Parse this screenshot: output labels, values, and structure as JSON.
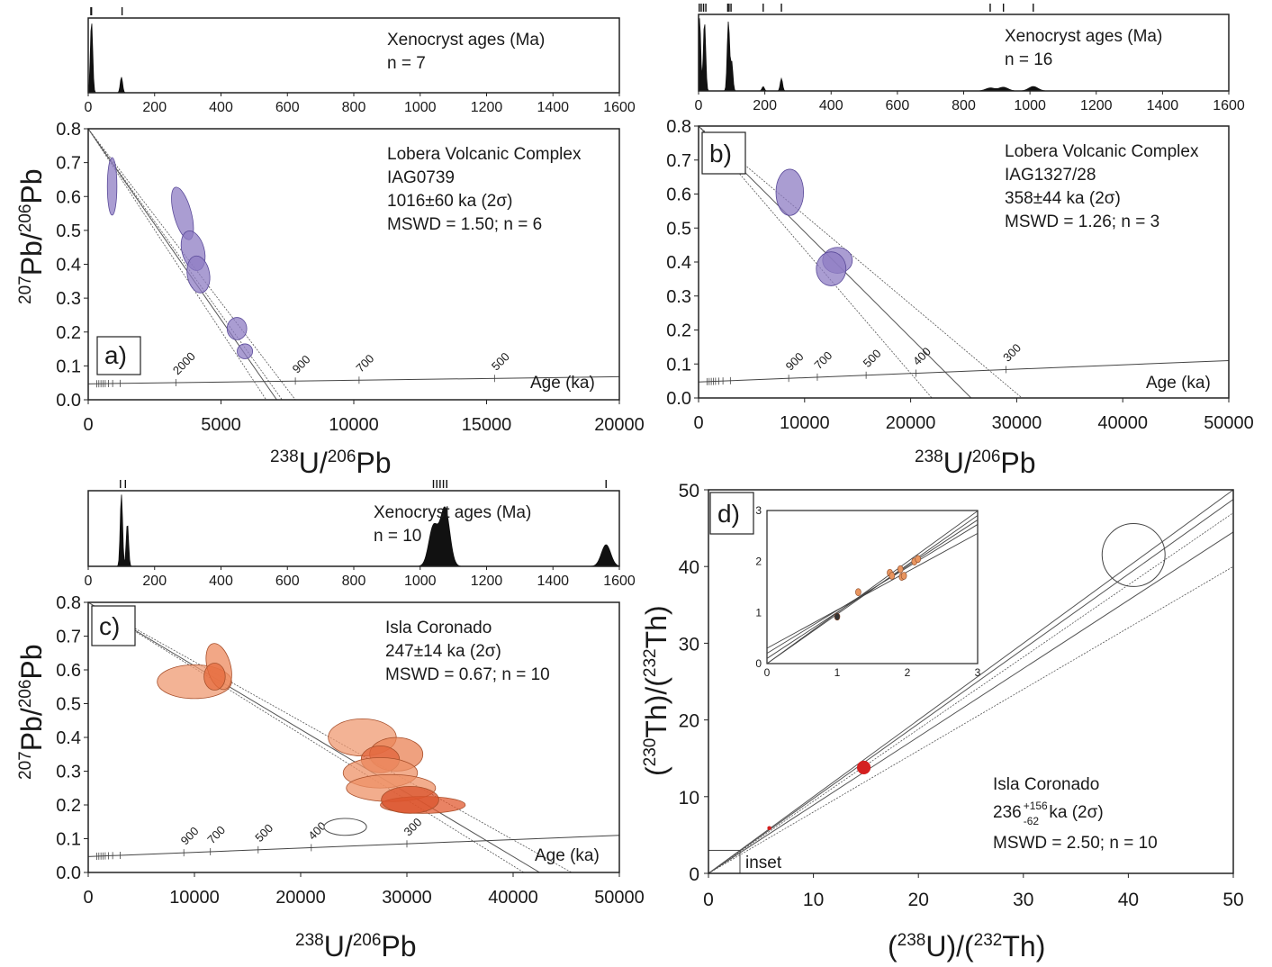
{
  "chart_data": [
    {
      "panel": "a",
      "type": "scatter",
      "label": "a)",
      "hist": {
        "title": "Xenocryst ages (Ma)",
        "n": "n = 7",
        "ticks": [
          "0",
          "200",
          "400",
          "600",
          "800",
          "1000",
          "1200",
          "1400",
          "1600"
        ],
        "xlim": [
          0,
          1600
        ],
        "peaks": [
          {
            "age": 10,
            "h": 1.0
          },
          {
            "age": 100,
            "h": 0.22
          }
        ],
        "rug": [
          8,
          10,
          102
        ]
      },
      "lines": [
        "Lobera Volcanic Complex",
        "IAG0739",
        "1016±60 ka (2σ)",
        "MSWD = 1.50; n = 6"
      ],
      "xlabel": {
        "pre": "238",
        "main": "U/",
        "pre2": "206",
        "main2": "Pb"
      },
      "ylabel": {
        "pre": "207",
        "main": "Pb/",
        "pre2": "206",
        "main2": "Pb"
      },
      "xlim": [
        0,
        20000
      ],
      "ylim": [
        0,
        0.8
      ],
      "xticks": [
        "0",
        "5000",
        "10000",
        "15000",
        "20000"
      ],
      "yticks": [
        "0.0",
        "0.1",
        "0.2",
        "0.3",
        "0.4",
        "0.5",
        "0.6",
        "0.7",
        "0.8"
      ],
      "age_label": "Age (ka)",
      "curve_labels": [
        {
          "t": "2000",
          "x": 3300
        },
        {
          "t": "900",
          "x": 7800
        },
        {
          "t": "700",
          "x": 10200
        },
        {
          "t": "500",
          "x": 15300
        }
      ],
      "curve": {
        "x0": 0,
        "y0": 0.047,
        "x1": 20000,
        "y1": 0.068
      },
      "iso_lines": [
        [
          0,
          0.8,
          7100,
          0.0
        ],
        [
          0,
          0.8,
          7300,
          0.0
        ],
        [
          0,
          0.8,
          6700,
          0.0
        ],
        [
          0,
          0.8,
          7800,
          0.0
        ]
      ],
      "ellipses": [
        {
          "x": 900,
          "y": 0.63,
          "rx": 180,
          "ry": 0.085,
          "rot": 0
        },
        {
          "x": 3550,
          "y": 0.55,
          "rx": 330,
          "ry": 0.08,
          "rot": 15
        },
        {
          "x": 3950,
          "y": 0.44,
          "rx": 420,
          "ry": 0.06,
          "rot": 15
        },
        {
          "x": 4150,
          "y": 0.37,
          "rx": 420,
          "ry": 0.055,
          "rot": 10
        },
        {
          "x": 5600,
          "y": 0.21,
          "rx": 370,
          "ry": 0.033,
          "rot": 0
        },
        {
          "x": 5900,
          "y": 0.143,
          "rx": 290,
          "ry": 0.022,
          "rot": 0
        }
      ],
      "fill": "#8e7cc3"
    },
    {
      "panel": "b",
      "type": "scatter",
      "label": "b)",
      "hist": {
        "title": "Xenocryst ages (Ma)",
        "n": "n = 16",
        "ticks": [
          "0",
          "200",
          "400",
          "600",
          "800",
          "1000",
          "1200",
          "1400",
          "1600"
        ],
        "xlim": [
          0,
          1600
        ],
        "peaks": [
          {
            "age": 3,
            "h": 1.0
          },
          {
            "age": 18,
            "h": 0.95
          },
          {
            "age": 90,
            "h": 0.95
          },
          {
            "age": 100,
            "h": 0.4
          },
          {
            "age": 195,
            "h": 0.06
          },
          {
            "age": 250,
            "h": 0.17
          },
          {
            "age": 880,
            "h": 0.04
          },
          {
            "age": 920,
            "h": 0.05
          },
          {
            "age": 1010,
            "h": 0.06
          }
        ],
        "rug": [
          2,
          8,
          15,
          22,
          88,
          92,
          98,
          195,
          250,
          880,
          920,
          1010
        ]
      },
      "lines": [
        "Lobera Volcanic Complex",
        "IAG1327/28",
        "358±44 ka (2σ)",
        "MSWD = 1.26; n = 3"
      ],
      "xlabel": {
        "pre": "238",
        "main": "U/",
        "pre2": "206",
        "main2": "Pb"
      },
      "xlim": [
        0,
        50000
      ],
      "ylim": [
        0,
        0.8
      ],
      "xticks": [
        "0",
        "10000",
        "20000",
        "30000",
        "40000",
        "50000"
      ],
      "yticks": [
        "0.0",
        "0.1",
        "0.2",
        "0.3",
        "0.4",
        "0.5",
        "0.6",
        "0.7",
        "0.8"
      ],
      "age_label": "Age (ka)",
      "curve_labels": [
        {
          "t": "900",
          "x": 8500
        },
        {
          "t": "700",
          "x": 11200
        },
        {
          "t": "500",
          "x": 15800
        },
        {
          "t": "400",
          "x": 20500
        },
        {
          "t": "300",
          "x": 29000
        }
      ],
      "curve": {
        "x0": 0,
        "y0": 0.047,
        "x1": 50000,
        "y1": 0.11
      },
      "iso_lines": [
        [
          0,
          0.8,
          25700,
          0.0
        ],
        [
          0,
          0.8,
          22000,
          0.0
        ],
        [
          0,
          0.8,
          30500,
          0.0
        ]
      ],
      "ellipses": [
        {
          "x": 8600,
          "y": 0.605,
          "rx": 1300,
          "ry": 0.068,
          "rot": 0
        },
        {
          "x": 13100,
          "y": 0.405,
          "rx": 1400,
          "ry": 0.038,
          "rot": 0
        },
        {
          "x": 12500,
          "y": 0.38,
          "rx": 1400,
          "ry": 0.05,
          "rot": 0
        }
      ],
      "fill": "#8e7cc3"
    },
    {
      "panel": "c",
      "type": "scatter",
      "label": "c)",
      "hist": {
        "title": "Xenocryst ages (Ma)",
        "n": "n = 10",
        "ticks": [
          "0",
          "200",
          "400",
          "600",
          "800",
          "1000",
          "1200",
          "1400",
          "1600"
        ],
        "xlim": [
          0,
          1600
        ],
        "peaks": [
          {
            "age": 100,
            "h": 1.0
          },
          {
            "age": 118,
            "h": 0.6
          },
          {
            "age": 1040,
            "h": 0.55
          },
          {
            "age": 1075,
            "h": 0.8
          },
          {
            "age": 1560,
            "h": 0.3
          }
        ],
        "rug": [
          97,
          112,
          1040,
          1050,
          1060,
          1070,
          1080,
          1560
        ]
      },
      "lines": [
        "Isla Coronado",
        "247±14 ka (2σ)",
        "MSWD = 0.67; n = 10"
      ],
      "xlabel": {
        "pre": "238",
        "main": "U/",
        "pre2": "206",
        "main2": "Pb"
      },
      "ylabel": {
        "pre": "207",
        "main": "Pb/",
        "pre2": "206",
        "main2": "Pb"
      },
      "xlim": [
        0,
        50000
      ],
      "ylim": [
        0,
        0.8
      ],
      "xticks": [
        "0",
        "10000",
        "20000",
        "30000",
        "40000",
        "50000"
      ],
      "yticks": [
        "0.0",
        "0.1",
        "0.2",
        "0.3",
        "0.4",
        "0.5",
        "0.6",
        "0.7",
        "0.8"
      ],
      "age_label": "Age (ka)",
      "curve_labels": [
        {
          "t": "900",
          "x": 9000
        },
        {
          "t": "700",
          "x": 11500
        },
        {
          "t": "500",
          "x": 16000
        },
        {
          "t": "400",
          "x": 21000
        },
        {
          "t": "300",
          "x": 30000
        }
      ],
      "curve": {
        "x0": 0,
        "y0": 0.047,
        "x1": 50000,
        "y1": 0.11
      },
      "iso_lines": [
        [
          0,
          0.8,
          42500,
          0.0
        ],
        [
          0,
          0.8,
          41000,
          0.0
        ],
        [
          0,
          0.8,
          45500,
          0.0
        ]
      ],
      "ellipses": [
        {
          "x": 10000,
          "y": 0.565,
          "rx": 3500,
          "ry": 0.05,
          "rot": 0
        },
        {
          "x": 12300,
          "y": 0.61,
          "rx": 1100,
          "ry": 0.07,
          "rot": 15
        },
        {
          "x": 11900,
          "y": 0.58,
          "rx": 1000,
          "ry": 0.04,
          "rot": 0
        },
        {
          "x": 25800,
          "y": 0.4,
          "rx": 3200,
          "ry": 0.055,
          "rot": 0
        },
        {
          "x": 29000,
          "y": 0.35,
          "rx": 2500,
          "ry": 0.05,
          "rot": 0
        },
        {
          "x": 27500,
          "y": 0.335,
          "rx": 1800,
          "ry": 0.04,
          "rot": 0
        },
        {
          "x": 27500,
          "y": 0.295,
          "rx": 3500,
          "ry": 0.045,
          "rot": 0
        },
        {
          "x": 28500,
          "y": 0.25,
          "rx": 4200,
          "ry": 0.04,
          "rot": 0
        },
        {
          "x": 31500,
          "y": 0.2,
          "rx": 4000,
          "ry": 0.025,
          "rot": 0
        },
        {
          "x": 30300,
          "y": 0.215,
          "rx": 2700,
          "ry": 0.04,
          "rot": 0
        }
      ],
      "fill": "#e8774b",
      "open_ellipse": {
        "x": 24200,
        "y": 0.135,
        "rx": 2000,
        "ry": 0.025
      }
    },
    {
      "panel": "d",
      "type": "scatter",
      "label": "d)",
      "lines": [
        "Isla Coronado",
        "MSWD = 2.50; n = 10"
      ],
      "age": {
        "main": "236",
        "plus": "+156",
        "minus": "-62",
        "unit": " ka (2σ)"
      },
      "xlabel": {
        "l": "(",
        "pre": "238",
        "main": "U)/(",
        "pre2": "232",
        "main2": "Th)"
      },
      "ylabel": {
        "l": "(",
        "pre": "230",
        "main": "Th)/(",
        "pre2": "232",
        "main2": "Th)"
      },
      "xlim": [
        0,
        50
      ],
      "ylim": [
        0,
        50
      ],
      "xticks": [
        "0",
        "10",
        "20",
        "30",
        "40",
        "50"
      ],
      "yticks": [
        "0",
        "10",
        "20",
        "30",
        "40",
        "50"
      ],
      "inset_label": "inset",
      "inset": {
        "xlim": [
          0,
          3
        ],
        "ylim": [
          0,
          3
        ],
        "xticks": [
          "0",
          "1",
          "2",
          "3"
        ],
        "yticks": [
          "0",
          "1",
          "2",
          "3"
        ],
        "points": [
          [
            1.3,
            1.4
          ],
          [
            1.75,
            1.78
          ],
          [
            1.78,
            1.72
          ],
          [
            1.9,
            1.85
          ],
          [
            1.92,
            1.7
          ],
          [
            1.95,
            1.72
          ],
          [
            2.1,
            2.0
          ],
          [
            2.15,
            2.05
          ],
          [
            1.0,
            0.92
          ]
        ]
      },
      "slopes": [
        1.0,
        0.975,
        0.89,
        0.8,
        0.94
      ],
      "points": [
        {
          "x": 14.8,
          "y": 13.8,
          "r": 0.5
        },
        {
          "x": 5.8,
          "y": 5.9,
          "r": 0.15
        }
      ],
      "open_circle": {
        "x": 40.5,
        "y": 41.5,
        "r": 3
      }
    }
  ]
}
